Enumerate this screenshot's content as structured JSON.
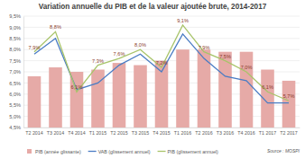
{
  "chart_data": {
    "type": "bar",
    "title": "Variation annuelle du PIB et de la valeur ajoutée brute, 2014-2017",
    "categories": [
      "T2 2014",
      "T3 2014",
      "T4 2014",
      "T1 2015",
      "T2 2015",
      "T3 2015",
      "T4 2015",
      "T1 2016",
      "T2 2016",
      "T3 2016",
      "T4 2016",
      "T1 2017",
      "T2 2017"
    ],
    "series": [
      {
        "name": "PIB (année glissante)",
        "type": "bar",
        "color": "#e6aaa7",
        "values": [
          6.8,
          7.2,
          7.0,
          7.1,
          7.4,
          7.3,
          7.5,
          8.0,
          8.0,
          7.9,
          7.9,
          7.1,
          6.6
        ]
      },
      {
        "name": "VAB (glissement annuel)",
        "type": "line",
        "color": "#4a7cc4",
        "values": [
          7.8,
          8.5,
          6.2,
          6.5,
          7.3,
          7.8,
          7.0,
          8.7,
          7.6,
          6.8,
          6.6,
          5.6,
          5.6
        ]
      },
      {
        "name": "PIB (glissement annuel)",
        "type": "line",
        "color": "#a8c46a",
        "data_labels": true,
        "values": [
          7.9,
          8.8,
          6.1,
          7.3,
          7.6,
          8.0,
          7.2,
          9.1,
          7.9,
          7.5,
          7.0,
          6.1,
          5.7
        ],
        "value_labels": [
          "7,9%",
          "8,8%",
          "6,1%",
          "7,3%",
          "7,6%",
          "8,0%",
          "7,2%",
          "9,1%",
          "7,9%",
          "7,5%",
          "7,0%",
          "6,1%",
          "5,7%"
        ]
      }
    ],
    "ylim": [
      4.5,
      9.5
    ],
    "yticks": [
      {
        "value": 4.5,
        "label": "4,5%"
      },
      {
        "value": 5.0,
        "label": "5,0%"
      },
      {
        "value": 5.5,
        "label": "5,5%"
      },
      {
        "value": 6.0,
        "label": "6,0%"
      },
      {
        "value": 6.5,
        "label": "6,5%"
      },
      {
        "value": 7.0,
        "label": "7,0%"
      },
      {
        "value": 7.5,
        "label": "7,5%"
      },
      {
        "value": 8.0,
        "label": "8,0%"
      },
      {
        "value": 8.5,
        "label": "8,5%"
      },
      {
        "value": 9.0,
        "label": "9,0%"
      },
      {
        "value": 9.5,
        "label": "9,5%"
      }
    ],
    "grid": true,
    "legend": "bottom",
    "annotations": [
      "Source : MOSPI"
    ]
  }
}
